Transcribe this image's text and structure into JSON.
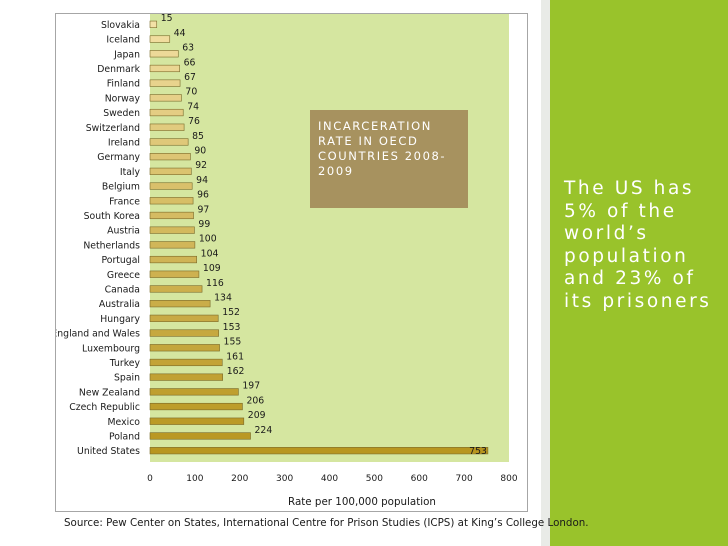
{
  "slide": {
    "caption": "The US has 5% of the world’s population and 23% of its prisoners",
    "source": "Source: Pew Center on States, International Centre for Prison Studies (ICPS) at King’s College London.",
    "colors": {
      "panel": "#99c32b",
      "title_box": "#a7925f",
      "plot_bg": "#d5e6a0",
      "bar_light": "#f3e1a6",
      "bar_dark": "#b8961f"
    }
  },
  "chart_data": {
    "type": "bar",
    "orientation": "horizontal",
    "title": "INCARCERATION RATE IN OECD COUNTRIES 2008-2009",
    "xlabel": "Rate per 100,000 population",
    "ylabel": "",
    "xlim": [
      0,
      800
    ],
    "xticks": [
      0,
      100,
      200,
      300,
      400,
      500,
      600,
      700,
      800
    ],
    "categories": [
      "Slovakia",
      "Iceland",
      "Japan",
      "Denmark",
      "Finland",
      "Norway",
      "Sweden",
      "Switzerland",
      "Ireland",
      "Germany",
      "Italy",
      "Belgium",
      "France",
      "South Korea",
      "Austria",
      "Netherlands",
      "Portugal",
      "Greece",
      "Canada",
      "Australia",
      "Hungary",
      "England and Wales",
      "Luxembourg",
      "Turkey",
      "Spain",
      "New Zealand",
      "Czech Republic",
      "Mexico",
      "Poland",
      "United States"
    ],
    "values": [
      15,
      44,
      63,
      66,
      67,
      70,
      74,
      76,
      85,
      90,
      92,
      94,
      96,
      97,
      99,
      100,
      104,
      109,
      116,
      134,
      152,
      153,
      155,
      161,
      162,
      197,
      206,
      209,
      224,
      753
    ],
    "grid": false,
    "legend": "none"
  }
}
